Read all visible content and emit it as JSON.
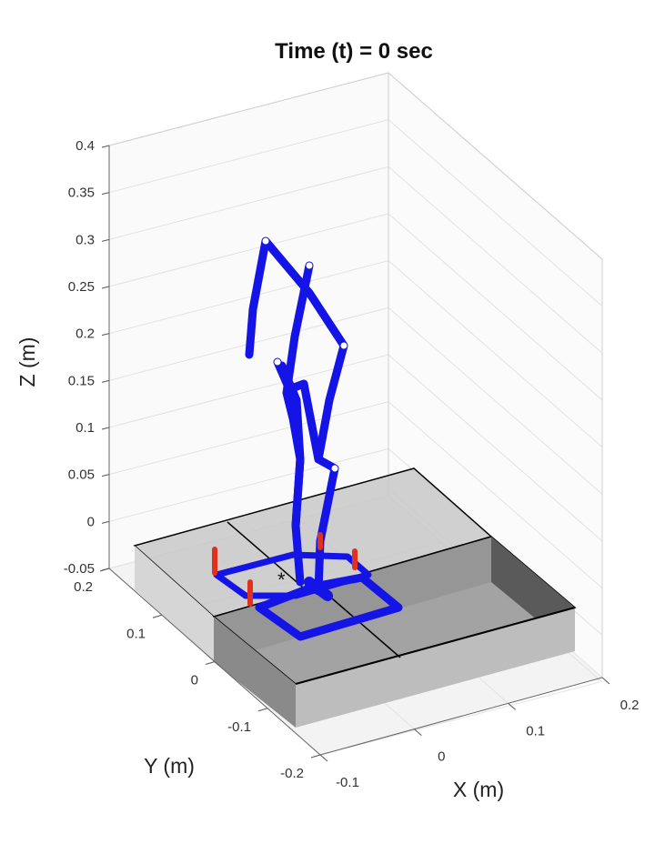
{
  "chart_data": {
    "type": "3d-line",
    "title": "Time (t) = 0 sec",
    "xlabel": "X (m)",
    "ylabel": "Y (m)",
    "zlabel": "Z (m)",
    "xlim": [
      -0.1,
      0.2
    ],
    "ylim": [
      -0.2,
      0.2
    ],
    "zlim": [
      -0.05,
      0.4
    ],
    "xticks": [
      "-0.1",
      "0",
      "0.1",
      "0.2"
    ],
    "yticks": [
      "-0.2",
      "-0.1",
      "0",
      "0.1",
      "0.2"
    ],
    "zticks": [
      "-0.05",
      "0",
      "0.05",
      "0.1",
      "0.15",
      "0.2",
      "0.25",
      "0.3",
      "0.35",
      "0.4"
    ],
    "grid": true,
    "colors": {
      "body": "#1414e6",
      "force_vectors": "#e0301e",
      "terrain_light": "#c8c8c8",
      "terrain_dark": "#6e6e6e",
      "terrain_edge": "#000000"
    },
    "center_of_mass_marker": "*"
  }
}
